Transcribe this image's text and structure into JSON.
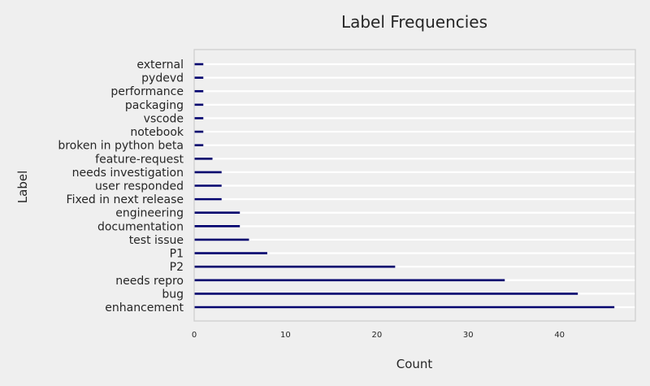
{
  "chart_data": {
    "type": "bar",
    "orientation": "horizontal",
    "title": "Label Frequencies",
    "xlabel": "Count",
    "ylabel": "Label",
    "categories": [
      "enhancement",
      "bug",
      "needs repro",
      "P2",
      "P1",
      "test issue",
      "documentation",
      "engineering",
      "Fixed in next release",
      "user responded",
      "needs investigation",
      "feature-request",
      "broken in python beta",
      "notebook",
      "vscode",
      "packaging",
      "performance",
      "pydevd",
      "external"
    ],
    "values": [
      46,
      42,
      34,
      22,
      8,
      6,
      5,
      5,
      3,
      3,
      3,
      2,
      1,
      1,
      1,
      1,
      1,
      1,
      1
    ],
    "xlim": [
      0,
      48.3
    ],
    "xticks": [
      0,
      10,
      20,
      30,
      40
    ],
    "grid": true,
    "bar_color": "#00006e",
    "grid_color": "#ffffff",
    "background_color": "#efefef",
    "axes_edge_color": "#cccccc"
  }
}
